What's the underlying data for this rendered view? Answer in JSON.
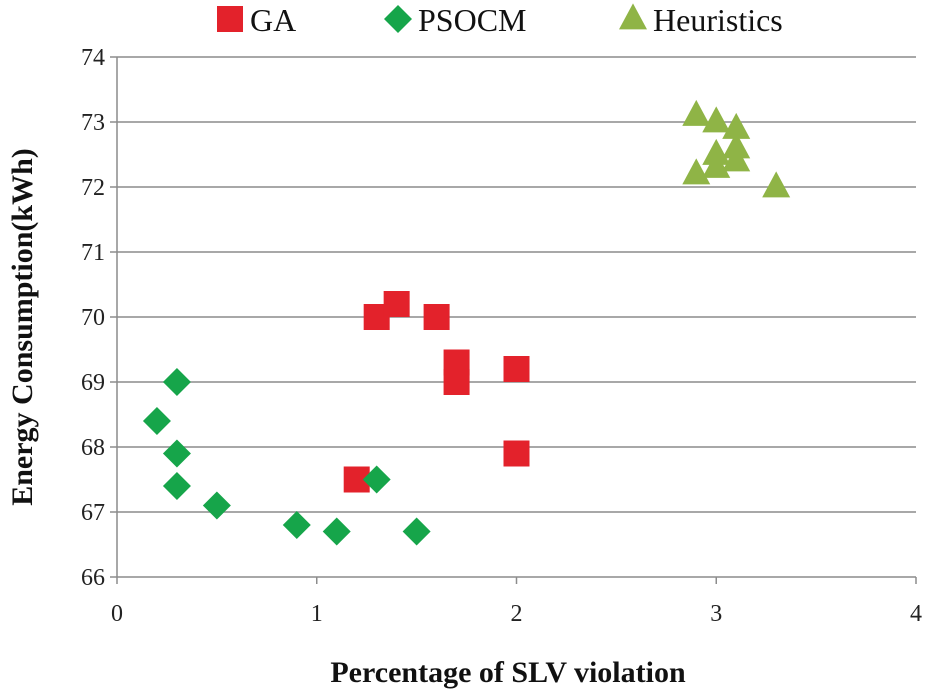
{
  "chart_data": {
    "type": "scatter",
    "title": "",
    "xlabel": "Percentage of SLV violation",
    "ylabel": "Energy Consumption(kWh)",
    "xlim": [
      0,
      4
    ],
    "ylim": [
      66,
      74
    ],
    "xticks": [
      "0",
      "1",
      "2",
      "3",
      "4"
    ],
    "yticks": [
      "66",
      "67",
      "68",
      "69",
      "70",
      "71",
      "72",
      "73",
      "74"
    ],
    "grid": "horizontal",
    "legend_position": "top",
    "series": [
      {
        "name": "GA",
        "marker": "square",
        "color": "#e3222b",
        "points": [
          {
            "x": 1.2,
            "y": 67.5
          },
          {
            "x": 1.3,
            "y": 70.0
          },
          {
            "x": 1.4,
            "y": 70.2
          },
          {
            "x": 1.6,
            "y": 70.0
          },
          {
            "x": 1.7,
            "y": 69.3
          },
          {
            "x": 1.7,
            "y": 69.0
          },
          {
            "x": 2.0,
            "y": 69.2
          },
          {
            "x": 2.0,
            "y": 67.9
          }
        ]
      },
      {
        "name": "PSOCM",
        "marker": "diamond",
        "color": "#16a54a",
        "points": [
          {
            "x": 0.2,
            "y": 68.4
          },
          {
            "x": 0.3,
            "y": 69.0
          },
          {
            "x": 0.3,
            "y": 67.9
          },
          {
            "x": 0.3,
            "y": 67.4
          },
          {
            "x": 0.5,
            "y": 67.1
          },
          {
            "x": 0.9,
            "y": 66.8
          },
          {
            "x": 1.1,
            "y": 66.7
          },
          {
            "x": 1.3,
            "y": 67.5
          },
          {
            "x": 1.5,
            "y": 66.7
          }
        ]
      },
      {
        "name": "Heuristics",
        "marker": "triangle",
        "color": "#8fb446",
        "points": [
          {
            "x": 2.9,
            "y": 73.1
          },
          {
            "x": 3.0,
            "y": 73.0
          },
          {
            "x": 3.1,
            "y": 72.9
          },
          {
            "x": 3.0,
            "y": 72.5
          },
          {
            "x": 3.1,
            "y": 72.6
          },
          {
            "x": 3.0,
            "y": 72.3
          },
          {
            "x": 3.1,
            "y": 72.4
          },
          {
            "x": 2.9,
            "y": 72.2
          },
          {
            "x": 3.3,
            "y": 72.0
          }
        ]
      }
    ]
  }
}
